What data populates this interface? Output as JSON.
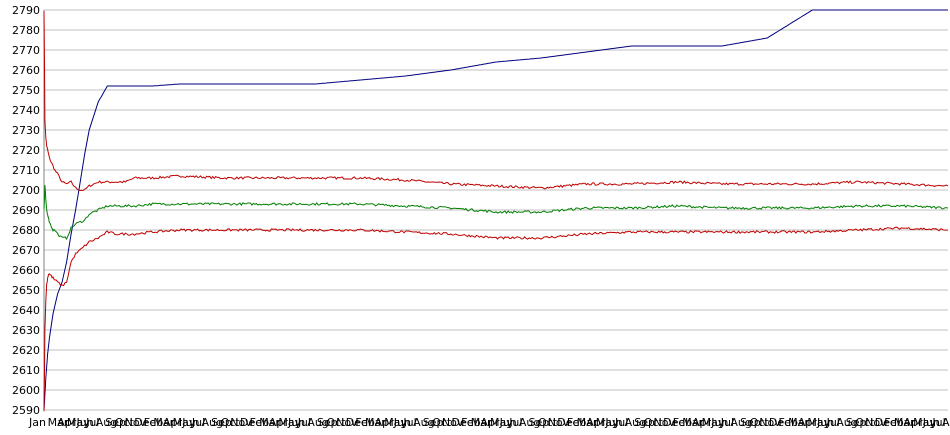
{
  "chart_data": {
    "type": "line",
    "title": "",
    "xlabel": "",
    "ylabel": "",
    "ylim": [
      2590,
      2790
    ],
    "ytick_step": 10,
    "grid": true,
    "legend": "none",
    "x_tick_first_label": "Jan",
    "x_tick_labels_overlapping": true,
    "x_tick_count": 95,
    "x": [
      0,
      1,
      2,
      3,
      4,
      5,
      6,
      8,
      10,
      12,
      15,
      20,
      25,
      30,
      35,
      40,
      45,
      50,
      60,
      70,
      80,
      90,
      100,
      120,
      150,
      200,
      250,
      300,
      350,
      400,
      450,
      500,
      550,
      600,
      650,
      700,
      750,
      800,
      850,
      900,
      950,
      1000
    ],
    "series": [
      {
        "color": "#00007f",
        "values": [
          2590,
          2598,
          2606,
          2612,
          2618,
          2622,
          2626,
          2632,
          2638,
          2642,
          2648,
          2654,
          2664,
          2678,
          2690,
          2704,
          2718,
          2730,
          2744,
          2752,
          2752,
          2752,
          2752,
          2752,
          2753,
          2753,
          2753,
          2753,
          2755,
          2757,
          2760,
          2764,
          2766,
          2769,
          2772,
          2772,
          2772,
          2776,
          2790,
          2790,
          2790,
          2790
        ]
      },
      {
        "color": "#bf0000",
        "values": [
          2790,
          2735,
          2726,
          2722,
          2720,
          2718,
          2716,
          2714,
          2712,
          2710,
          2708,
          2704,
          2703,
          2704,
          2701,
          2700,
          2700,
          2702,
          2704,
          2704,
          2704,
          2704,
          2706,
          2706,
          2707,
          2706,
          2706,
          2706,
          2706,
          2705,
          2703,
          2702,
          2701,
          2703,
          2703,
          2704,
          2703,
          2703,
          2703,
          2704,
          2703,
          2702
        ]
      },
      {
        "color": "#007f00",
        "values": [
          2690,
          2702,
          2695,
          2690,
          2688,
          2686,
          2684,
          2682,
          2680,
          2680,
          2678,
          2676,
          2676,
          2681,
          2683,
          2684,
          2685,
          2688,
          2690,
          2692,
          2692,
          2692,
          2692,
          2693,
          2693,
          2693,
          2693,
          2693,
          2693,
          2692,
          2691,
          2689,
          2689,
          2691,
          2691,
          2692,
          2691,
          2691,
          2691,
          2692,
          2692,
          2691
        ]
      },
      {
        "color": "#bf0000",
        "values": [
          2590,
          2630,
          2645,
          2653,
          2656,
          2658,
          2658,
          2657,
          2656,
          2655,
          2654,
          2652,
          2654,
          2664,
          2668,
          2670,
          2672,
          2674,
          2676,
          2679,
          2678,
          2678,
          2678,
          2679,
          2680,
          2680,
          2680,
          2680,
          2680,
          2679,
          2678,
          2676,
          2676,
          2678,
          2679,
          2679,
          2679,
          2679,
          2679,
          2680,
          2681,
          2680
        ]
      }
    ]
  }
}
